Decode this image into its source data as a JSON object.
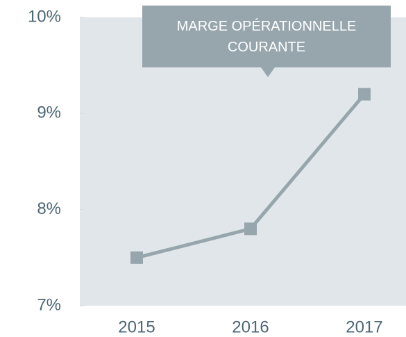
{
  "chart_data": {
    "type": "line",
    "title": "MARGE OPÉRATIONNELLE COURANTE",
    "categories": [
      "2015",
      "2016",
      "2017"
    ],
    "values": [
      7.5,
      7.8,
      9.2
    ],
    "color": "#97a6ad",
    "ylim": [
      7,
      10
    ],
    "yticks": [
      {
        "value": 7,
        "label": "7%"
      },
      {
        "value": 8,
        "label": "8%"
      },
      {
        "value": 9,
        "label": "9%"
      },
      {
        "value": 10,
        "label": "10%"
      }
    ]
  }
}
